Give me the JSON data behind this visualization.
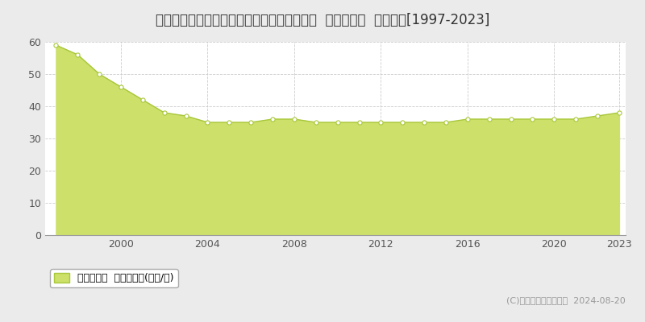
{
  "title": "千葉県佐倉市ユーカリが丘２丁目２３番１４  基準地価格  地価推移[1997-2023]",
  "years": [
    1997,
    1998,
    1999,
    2000,
    2001,
    2002,
    2003,
    2004,
    2005,
    2006,
    2007,
    2008,
    2009,
    2010,
    2011,
    2012,
    2013,
    2014,
    2015,
    2016,
    2017,
    2018,
    2019,
    2020,
    2021,
    2022,
    2023
  ],
  "values": [
    59,
    56,
    50,
    46,
    42,
    38,
    37,
    35,
    35,
    35,
    36,
    36,
    35,
    35,
    35,
    35,
    35,
    35,
    35,
    36,
    36,
    36,
    36,
    36,
    36,
    37,
    38
  ],
  "line_color": "#a8c83a",
  "fill_color": "#cde06a",
  "marker_color": "#ffffff",
  "marker_edge_color": "#a8c83a",
  "bg_color": "#ebebeb",
  "plot_bg_color": "#ffffff",
  "grid_color": "#cccccc",
  "ylim": [
    0,
    60
  ],
  "yticks": [
    0,
    10,
    20,
    30,
    40,
    50,
    60
  ],
  "xticks": [
    2000,
    2004,
    2008,
    2012,
    2016,
    2020,
    2023
  ],
  "legend_label": "基準地価格  平均坪単価(万円/坪)",
  "copyright_text": "(C)土地価格ドットコム  2024-08-20",
  "title_fontsize": 12,
  "tick_fontsize": 9,
  "legend_fontsize": 9,
  "copyright_fontsize": 8
}
